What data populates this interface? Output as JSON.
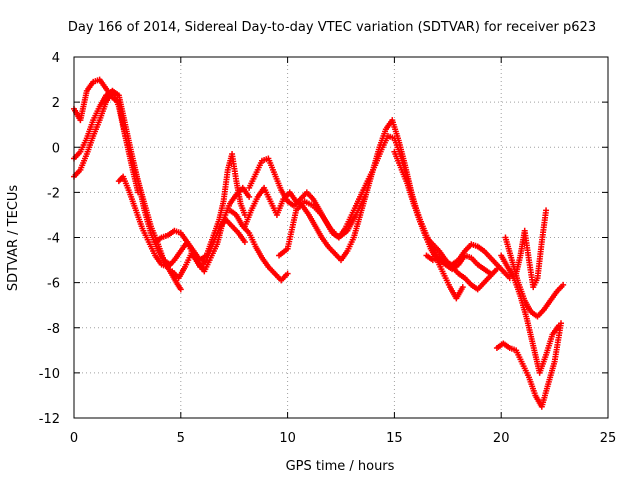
{
  "chart_data": {
    "type": "scatter",
    "title": "Day 166 of 2014, Sidereal Day-to-day VTEC variation (SDTVAR) for receiver p623",
    "xlabel": "GPS time / hours",
    "ylabel": "SDTVAR / TECUs",
    "xlim": [
      0,
      25
    ],
    "ylim": [
      -12,
      4
    ],
    "xticks": [
      0,
      5,
      10,
      15,
      20,
      25
    ],
    "yticks": [
      -12,
      -10,
      -8,
      -6,
      -4,
      -2,
      0,
      2,
      4
    ],
    "grid": true,
    "marker": "plus",
    "series_color": "#ff0000",
    "series": [
      {
        "name": "s1",
        "x": [
          0.0,
          0.3,
          0.6,
          0.9,
          1.2,
          1.5,
          1.8,
          2.1,
          2.4,
          2.7,
          3.0,
          3.3,
          3.6,
          3.9,
          4.2,
          4.5,
          4.8,
          5.0
        ],
        "y": [
          1.7,
          1.2,
          2.5,
          2.9,
          3.0,
          2.6,
          2.2,
          2.0,
          0.5,
          -0.6,
          -1.5,
          -2.5,
          -3.5,
          -4.2,
          -5.0,
          -5.5,
          -6.0,
          -6.3
        ]
      },
      {
        "name": "s2",
        "x": [
          0.0,
          0.3,
          0.6,
          0.9,
          1.2,
          1.5,
          1.8,
          2.1,
          2.4,
          2.7,
          3.0,
          3.3,
          3.6,
          3.9,
          4.2,
          4.5
        ],
        "y": [
          -1.3,
          -1.0,
          -0.3,
          0.5,
          1.2,
          2.0,
          2.5,
          2.3,
          1.0,
          -0.3,
          -1.5,
          -2.8,
          -3.8,
          -4.5,
          -5.0,
          -5.2
        ]
      },
      {
        "name": "s3",
        "x": [
          0.0,
          0.3,
          0.6,
          0.9,
          1.2,
          1.5,
          1.8,
          2.1,
          2.4,
          2.7,
          3.0
        ],
        "y": [
          -0.5,
          -0.2,
          0.4,
          1.2,
          1.8,
          2.3,
          2.5,
          1.8,
          0.5,
          -0.8,
          -2.0
        ]
      },
      {
        "name": "s4",
        "x": [
          2.1,
          2.3,
          2.6,
          2.9,
          3.2,
          3.5,
          3.8,
          4.1,
          4.4,
          4.7,
          5.0,
          5.3,
          5.6,
          5.9,
          6.2,
          6.5,
          6.8,
          7.0,
          7.2,
          7.4,
          7.6,
          7.8,
          8.0
        ],
        "y": [
          -1.5,
          -1.3,
          -2.0,
          -2.8,
          -3.6,
          -4.2,
          -4.8,
          -5.2,
          -5.3,
          -5.0,
          -4.6,
          -4.2,
          -4.6,
          -5.0,
          -4.8,
          -4.0,
          -3.2,
          -2.4,
          -1.0,
          -0.3,
          -1.5,
          -2.5,
          -3.0
        ]
      },
      {
        "name": "s5",
        "x": [
          3.8,
          4.1,
          4.4,
          4.7,
          5.0,
          5.3,
          5.6,
          5.9,
          6.2,
          6.5,
          6.8,
          7.1,
          7.4,
          7.7,
          8.0
        ],
        "y": [
          -4.2,
          -4.0,
          -3.9,
          -3.7,
          -3.8,
          -4.2,
          -4.8,
          -5.3,
          -5.0,
          -4.3,
          -3.6,
          -3.2,
          -3.5,
          -3.8,
          -4.2
        ]
      },
      {
        "name": "s6",
        "x": [
          4.6,
          4.9,
          5.2,
          5.5,
          5.8,
          6.1,
          6.4,
          6.7,
          7.0,
          7.3,
          7.6,
          7.9,
          8.2
        ],
        "y": [
          -5.5,
          -5.8,
          -5.3,
          -4.7,
          -5.1,
          -5.5,
          -4.9,
          -4.3,
          -3.2,
          -2.5,
          -2.1,
          -1.8,
          -2.2
        ]
      },
      {
        "name": "s7",
        "x": [
          7.3,
          7.6,
          7.9,
          8.2,
          8.5,
          8.8,
          9.1,
          9.4,
          9.7,
          10.0
        ],
        "y": [
          -2.8,
          -3.0,
          -3.5,
          -3.8,
          -4.4,
          -4.9,
          -5.3,
          -5.6,
          -5.9,
          -5.6
        ]
      },
      {
        "name": "s8",
        "x": [
          8.0,
          8.3,
          8.6,
          8.9,
          9.2,
          9.5,
          9.8,
          10.1,
          10.4,
          10.7,
          11.0,
          11.3,
          11.6,
          11.9,
          12.2,
          12.5,
          12.8,
          13.1,
          13.4,
          13.7,
          14.0,
          14.3,
          14.6,
          14.9,
          15.2,
          15.5,
          15.8,
          16.1,
          16.4,
          16.7,
          17.0,
          17.3,
          17.6,
          17.9,
          18.2
        ],
        "y": [
          -3.5,
          -2.8,
          -2.2,
          -1.8,
          -2.4,
          -3.0,
          -2.3,
          -2.0,
          -2.4,
          -2.6,
          -3.0,
          -3.5,
          -4.0,
          -4.4,
          -4.7,
          -5.0,
          -4.6,
          -4.0,
          -3.0,
          -2.0,
          -1.0,
          0.0,
          0.8,
          1.2,
          0.3,
          -0.8,
          -2.0,
          -3.0,
          -3.8,
          -4.5,
          -5.0,
          -5.6,
          -6.2,
          -6.7,
          -6.2
        ]
      },
      {
        "name": "s9",
        "x": [
          8.2,
          8.5,
          8.8,
          9.1,
          9.4,
          9.7,
          10.0,
          10.3,
          10.6,
          10.9,
          11.2,
          11.5,
          11.8,
          12.1,
          12.4,
          12.7,
          13.0,
          13.3,
          13.6,
          13.9
        ],
        "y": [
          -1.8,
          -1.2,
          -0.6,
          -0.5,
          -1.2,
          -1.9,
          -2.4,
          -2.6,
          -2.3,
          -2.0,
          -2.3,
          -2.8,
          -3.3,
          -3.8,
          -4.0,
          -3.6,
          -3.0,
          -2.4,
          -1.8,
          -1.2
        ]
      },
      {
        "name": "s10",
        "x": [
          9.6,
          10.0,
          10.4,
          10.8,
          11.2,
          11.6,
          12.0,
          12.4,
          12.8,
          13.2,
          13.6
        ],
        "y": [
          -4.8,
          -4.5,
          -2.8,
          -2.4,
          -2.6,
          -3.0,
          -3.6,
          -4.0,
          -3.7,
          -3.0,
          -2.2
        ]
      },
      {
        "name": "s11",
        "x": [
          13.2,
          13.5,
          13.8,
          14.1,
          14.4,
          14.7,
          15.0,
          15.3,
          15.6,
          15.9,
          16.2,
          16.5,
          16.8,
          17.1,
          17.4,
          17.7,
          18.0,
          18.3,
          18.6,
          18.9,
          19.2,
          19.5
        ],
        "y": [
          -2.6,
          -2.0,
          -1.4,
          -0.8,
          -0.1,
          0.5,
          0.4,
          -0.4,
          -1.4,
          -2.4,
          -3.2,
          -3.9,
          -4.5,
          -5.0,
          -5.2,
          -5.4,
          -5.2,
          -4.8,
          -4.9,
          -5.2,
          -5.4,
          -5.6
        ]
      },
      {
        "name": "s12",
        "x": [
          15.0,
          15.3,
          15.6,
          15.9,
          16.2,
          16.5,
          16.8,
          17.1,
          17.4,
          17.7,
          18.0,
          18.3,
          18.6,
          18.9,
          19.2,
          19.5,
          19.8
        ],
        "y": [
          -0.2,
          -0.9,
          -1.6,
          -2.5,
          -3.3,
          -4.0,
          -4.3,
          -4.6,
          -5.0,
          -5.3,
          -5.6,
          -5.8,
          -6.1,
          -6.3,
          -6.0,
          -5.7,
          -5.4
        ]
      },
      {
        "name": "s13",
        "x": [
          16.5,
          16.8,
          17.1,
          17.4,
          17.7,
          18.0,
          18.3,
          18.6,
          18.9,
          19.2,
          19.5,
          19.8,
          20.1,
          20.4
        ],
        "y": [
          -4.8,
          -5.0,
          -4.9,
          -5.1,
          -5.2,
          -5.0,
          -4.6,
          -4.3,
          -4.4,
          -4.6,
          -4.9,
          -5.2,
          -5.5,
          -5.8
        ]
      },
      {
        "name": "s14",
        "x": [
          19.8,
          20.1,
          20.4,
          20.7,
          21.0,
          21.3,
          21.6,
          21.9,
          22.2,
          22.5,
          22.8
        ],
        "y": [
          -8.9,
          -8.7,
          -8.9,
          -9.0,
          -9.6,
          -10.2,
          -11.0,
          -11.5,
          -10.5,
          -9.5,
          -7.8
        ]
      },
      {
        "name": "s15",
        "x": [
          20.0,
          20.3,
          20.6,
          20.9,
          21.2,
          21.5,
          21.8,
          22.1,
          22.4,
          22.7
        ],
        "y": [
          -4.8,
          -5.3,
          -5.8,
          -6.6,
          -7.6,
          -8.8,
          -10.0,
          -9.2,
          -8.3,
          -7.9
        ]
      },
      {
        "name": "s16",
        "x": [
          20.2,
          20.5,
          20.8,
          21.1,
          21.4,
          21.7,
          22.0,
          22.3,
          22.6,
          22.9
        ],
        "y": [
          -4.0,
          -5.0,
          -6.0,
          -6.8,
          -7.3,
          -7.5,
          -7.2,
          -6.8,
          -6.4,
          -6.1
        ]
      },
      {
        "name": "s17",
        "x": [
          20.7,
          20.9,
          21.1,
          21.3,
          21.5,
          21.7,
          21.9,
          22.1
        ],
        "y": [
          -5.6,
          -4.8,
          -3.7,
          -5.0,
          -6.2,
          -5.8,
          -4.2,
          -2.8
        ]
      }
    ]
  }
}
